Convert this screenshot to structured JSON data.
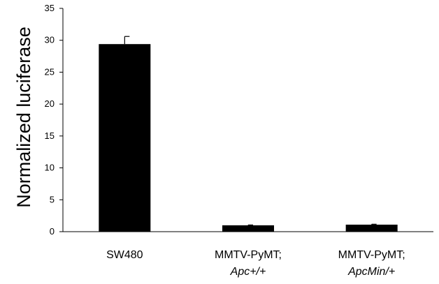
{
  "chart_data": {
    "type": "bar",
    "title": "",
    "xlabel": "",
    "ylabel": "Normalized luciferase",
    "ylim": [
      0,
      35
    ],
    "yticks": [
      0,
      5,
      10,
      15,
      20,
      25,
      30,
      35
    ],
    "grid": false,
    "categories": [
      {
        "line1": "SW480",
        "line2": ""
      },
      {
        "line1": "MMTV-PyMT;",
        "line2": "Apc+/+"
      },
      {
        "line1": "MMTV-PyMT;",
        "line2": "ApcMin/+"
      }
    ],
    "values": [
      29.4,
      1.0,
      1.1
    ],
    "errors": [
      1.2,
      0.05,
      0.07
    ],
    "bar_color": "#000000"
  }
}
